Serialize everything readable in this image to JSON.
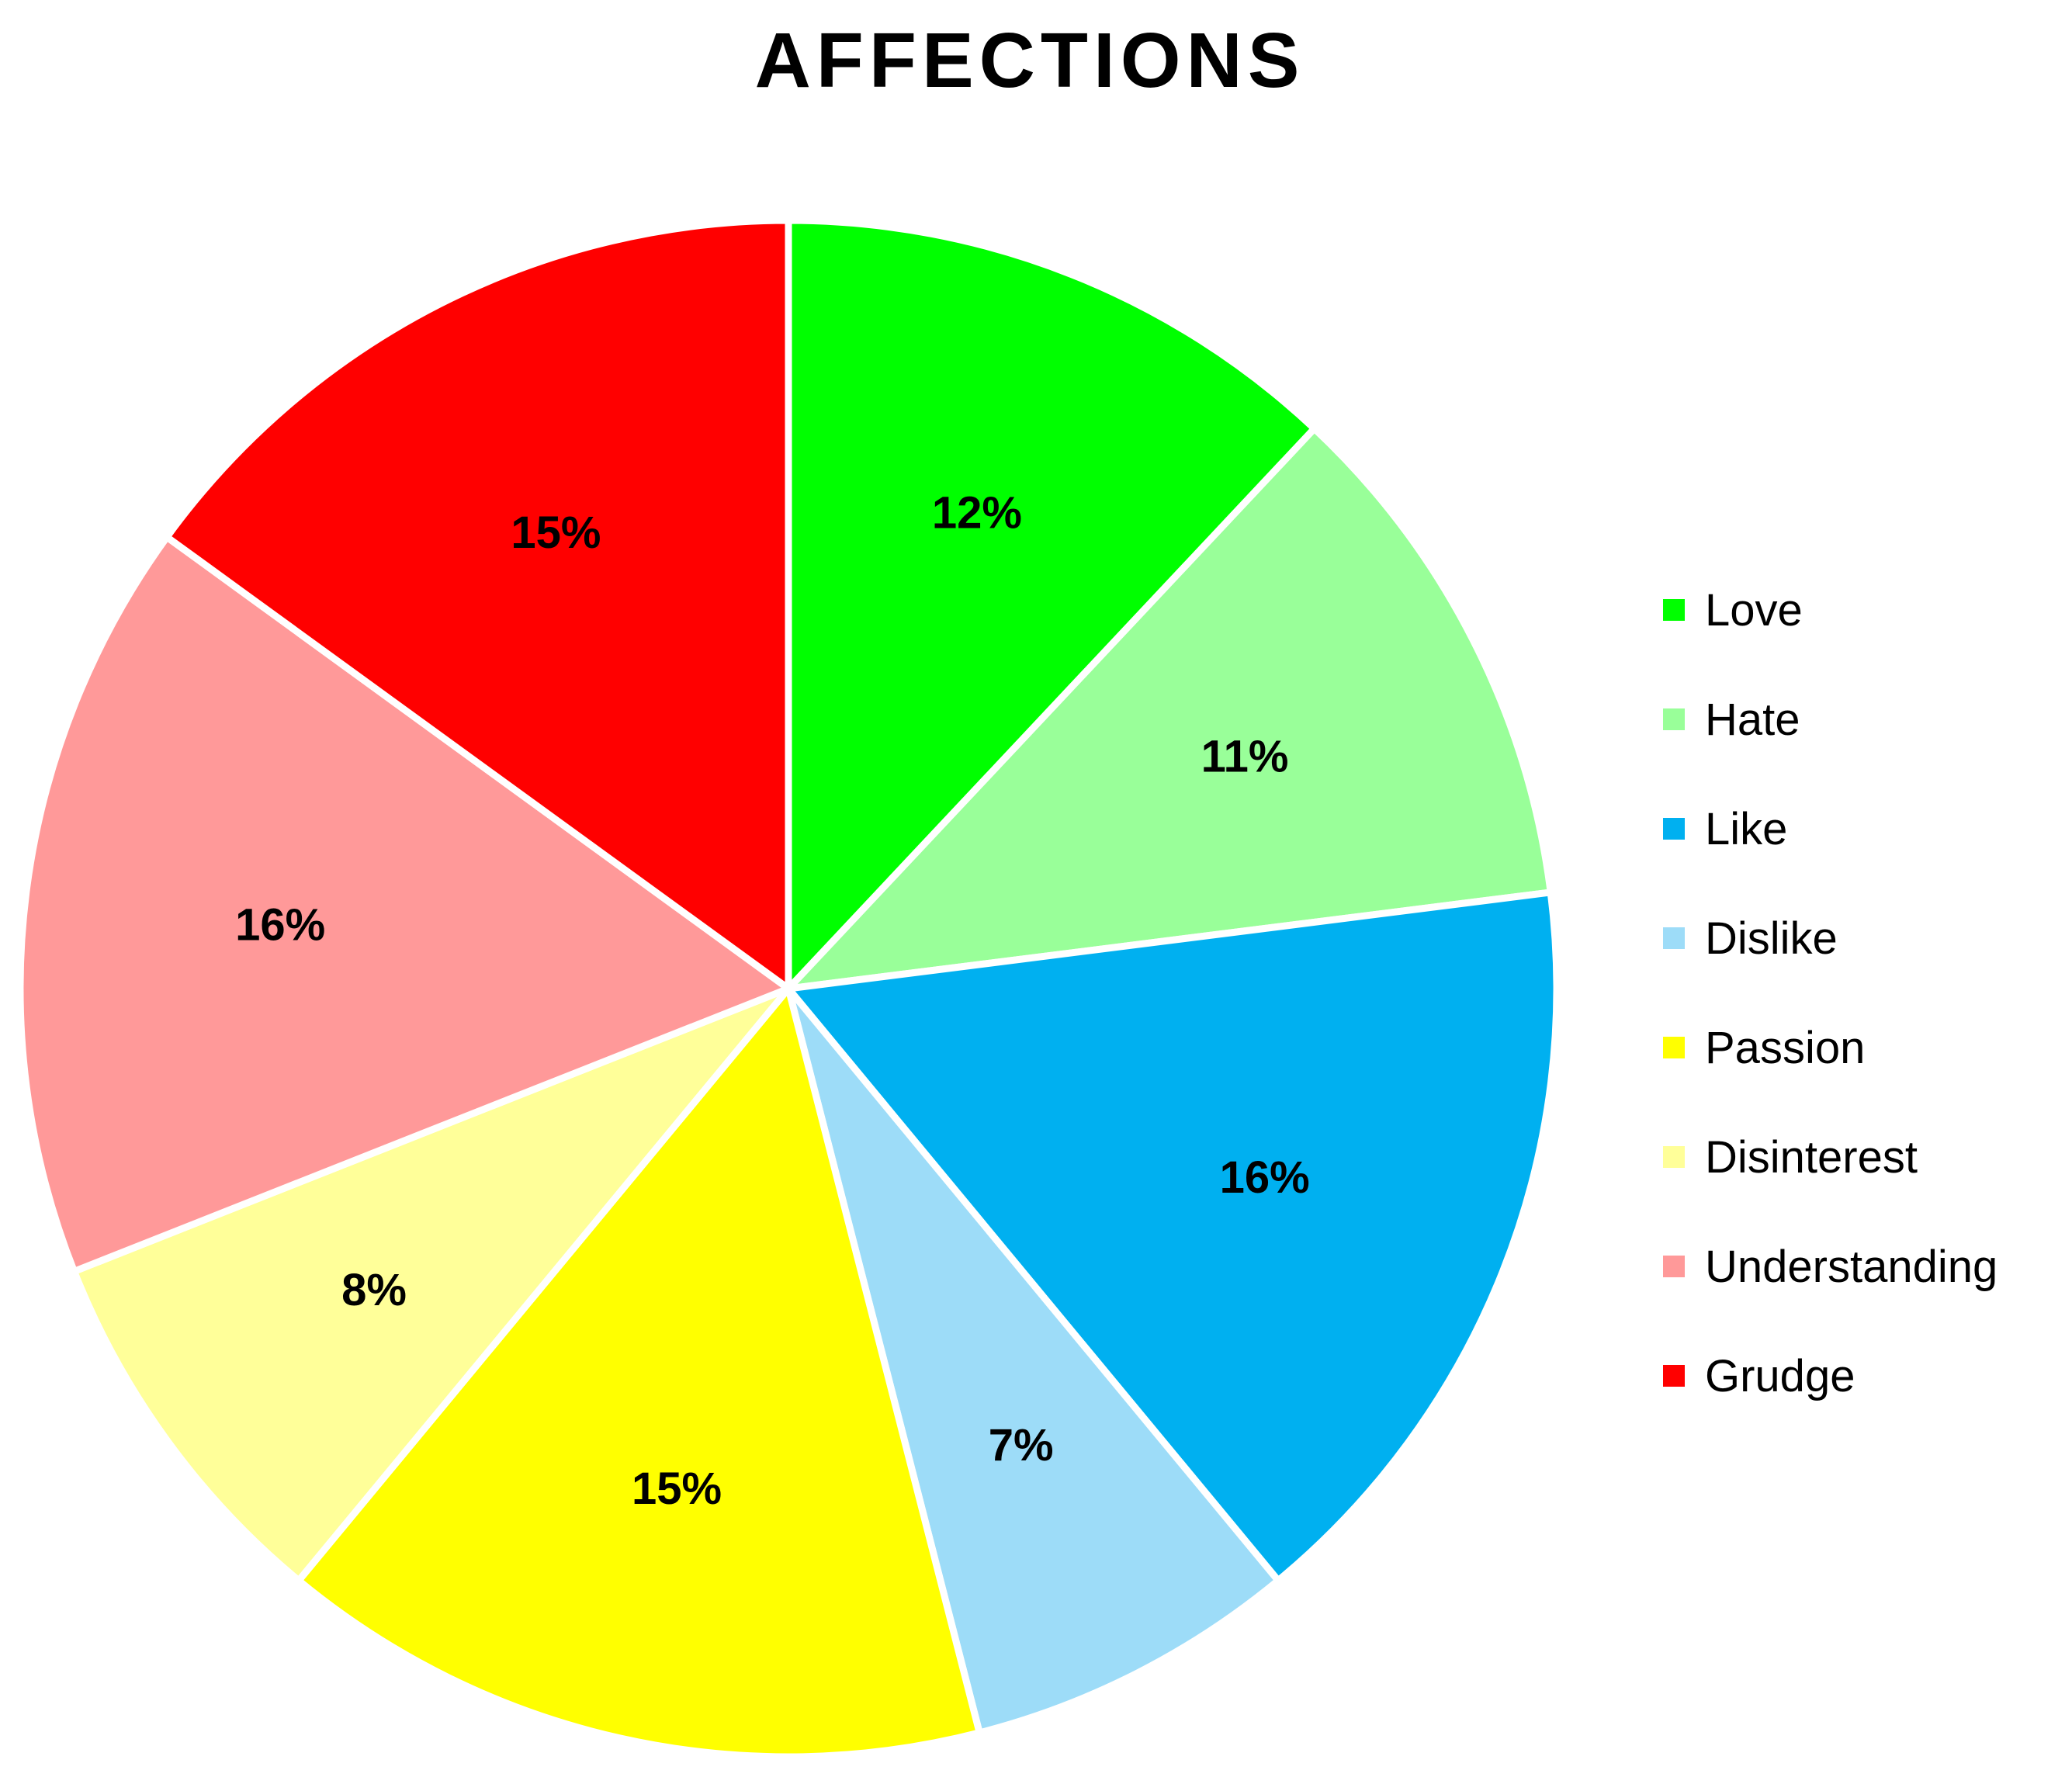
{
  "chart_data": {
    "type": "pie",
    "title": "AFFECTIONS",
    "categories": [
      "Love",
      "Hate",
      "Like",
      "Dislike",
      "Passion",
      "Disinterest",
      "Understanding",
      "Grudge"
    ],
    "values": [
      12,
      11,
      16,
      7,
      15,
      8,
      16,
      15
    ],
    "data_labels": [
      "12%",
      "11%",
      "16%",
      "7%",
      "15%",
      "8%",
      "16%",
      "15%"
    ],
    "colors": [
      "#00ff00",
      "#99ff99",
      "#00b0f0",
      "#9ddcf8",
      "#ffff00",
      "#ffff99",
      "#ff9999",
      "#ff0000"
    ],
    "start_angle": "12 o'clock",
    "direction": "clockwise",
    "legend_position": "right"
  }
}
